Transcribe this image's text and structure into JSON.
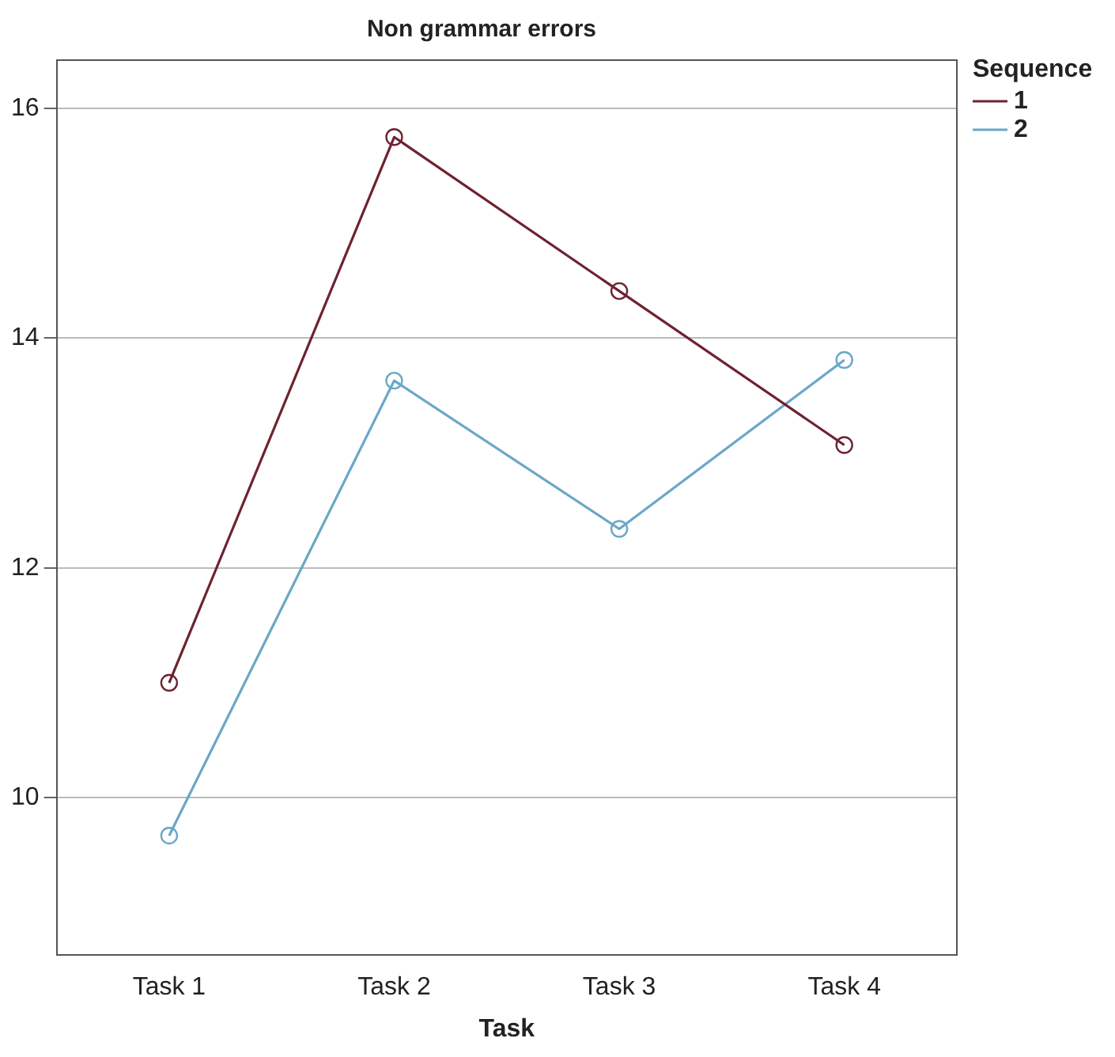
{
  "chart_data": {
    "type": "line",
    "title": "Non grammar errors",
    "xlabel": "Task",
    "legend_title": "Sequence",
    "categories": [
      "Task 1",
      "Task 2",
      "Task 3",
      "Task 4"
    ],
    "series": [
      {
        "name": "1",
        "color": "#6e2330",
        "values": [
          11.0,
          15.75,
          14.41,
          13.07
        ]
      },
      {
        "name": "2",
        "color": "#6aa7c8",
        "values": [
          9.67,
          13.63,
          12.34,
          13.81
        ]
      }
    ],
    "ylim": [
      8.63,
      16.42
    ],
    "yticks": [
      10,
      12,
      14,
      16
    ],
    "grid": "y",
    "legend": "right",
    "marker": "circle",
    "line_style": "solid"
  }
}
